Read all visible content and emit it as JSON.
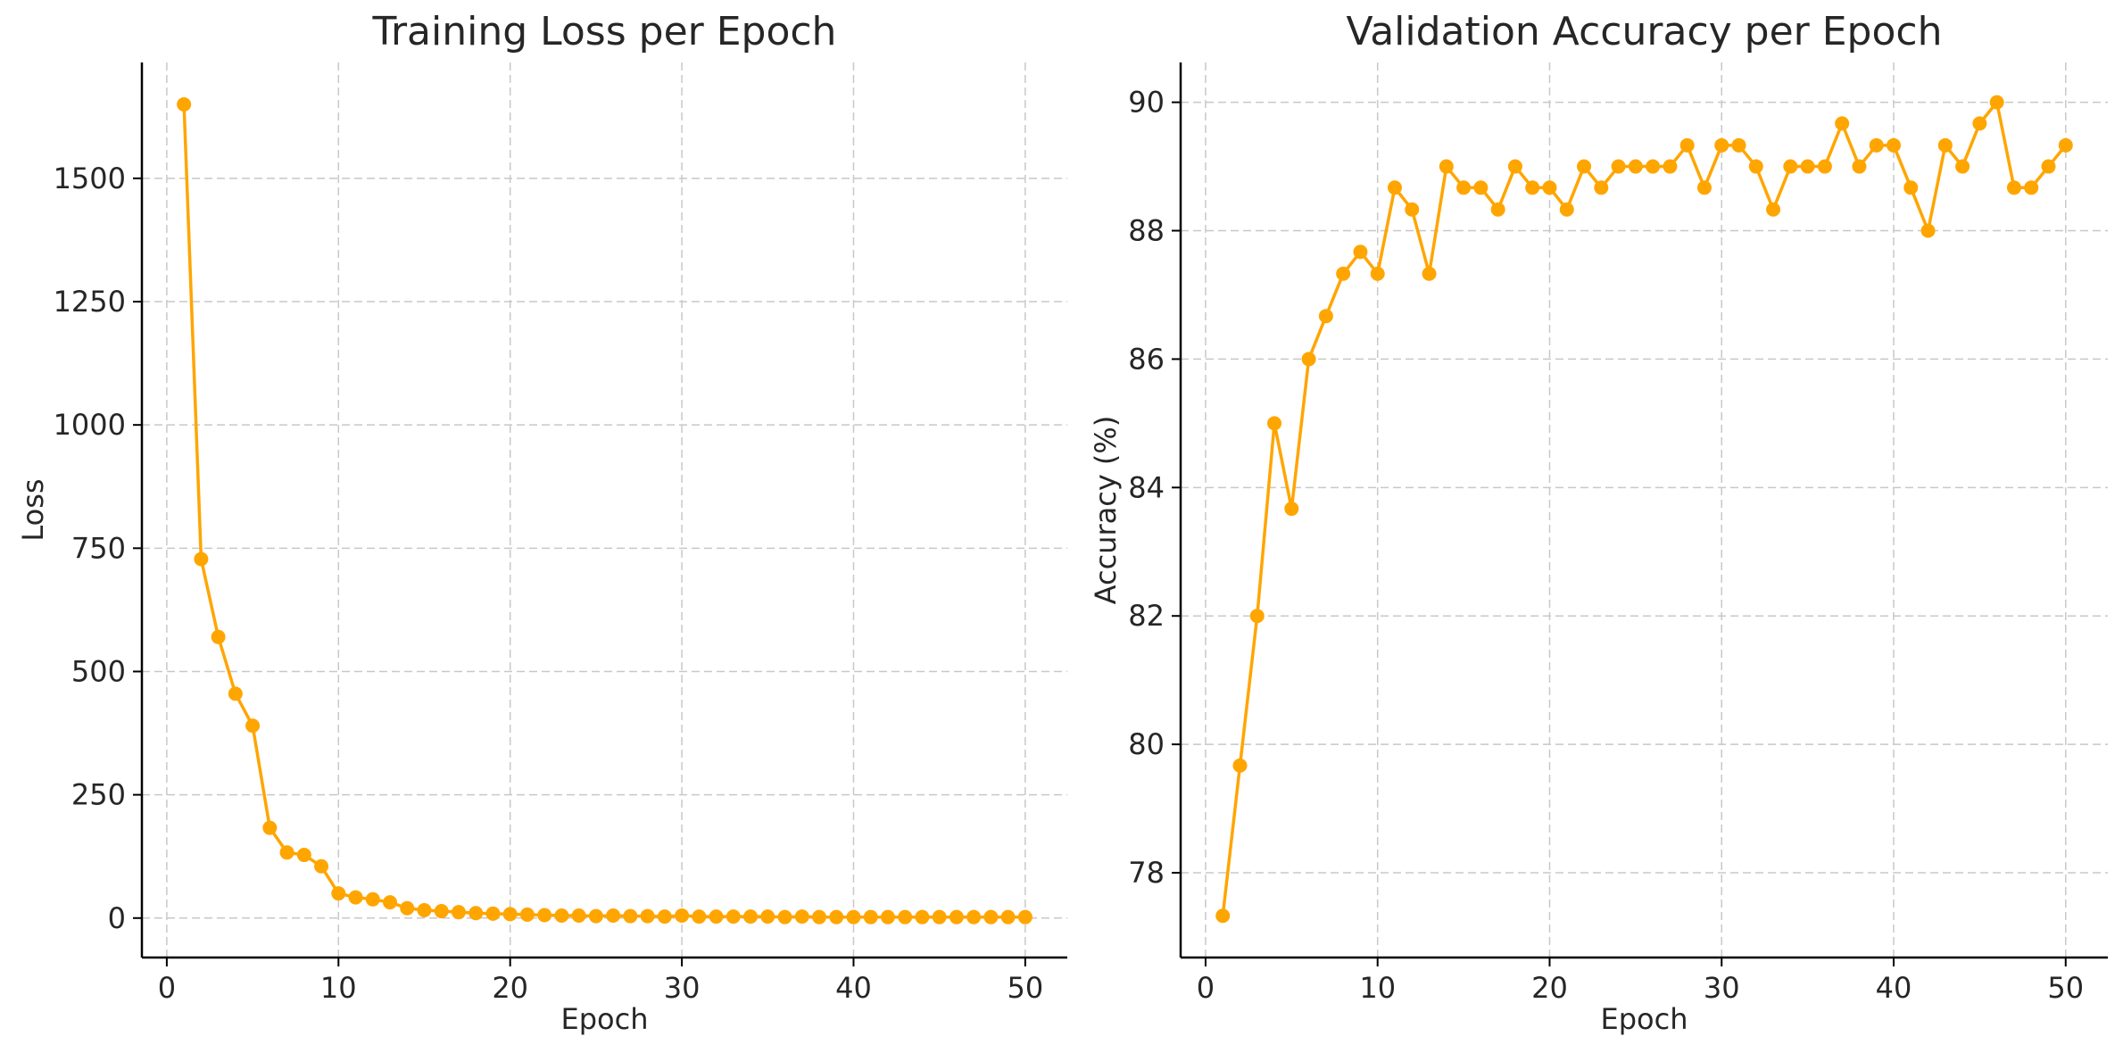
{
  "chart_data": [
    {
      "type": "line",
      "title": "Training Loss per Epoch",
      "xlabel": "Epoch",
      "ylabel": "Loss",
      "xlim": [
        -1.45,
        52.45
      ],
      "ylim": [
        -80,
        1735
      ],
      "xticks": [
        0,
        10,
        20,
        30,
        40,
        50
      ],
      "yticks": [
        0,
        250,
        500,
        750,
        1000,
        1250,
        1500
      ],
      "grid": true,
      "color": "#FFA500",
      "x": [
        1,
        2,
        3,
        4,
        5,
        6,
        7,
        8,
        9,
        10,
        11,
        12,
        13,
        14,
        15,
        16,
        17,
        18,
        19,
        20,
        21,
        22,
        23,
        24,
        25,
        26,
        27,
        28,
        29,
        30,
        31,
        32,
        33,
        34,
        35,
        36,
        37,
        38,
        39,
        40,
        41,
        42,
        43,
        44,
        45,
        46,
        47,
        48,
        49,
        50
      ],
      "series": [
        {
          "values": [
            1650,
            728,
            570,
            455,
            390,
            183,
            133,
            128,
            105,
            50,
            42,
            38,
            32,
            20,
            16,
            14,
            12,
            10,
            9,
            8,
            7,
            6,
            5,
            5,
            4,
            5,
            4,
            4,
            3,
            5,
            3,
            3,
            3,
            3,
            3,
            2,
            3,
            2,
            2,
            2,
            2,
            2,
            2,
            2,
            2,
            2,
            2,
            2,
            2,
            2
          ]
        }
      ]
    },
    {
      "type": "line",
      "title": "Validation Accuracy per Epoch",
      "xlabel": "Epoch",
      "ylabel": "Accuracy (%)",
      "xlim": [
        -1.45,
        52.45
      ],
      "ylim": [
        76.68,
        90.62
      ],
      "xticks": [
        0,
        10,
        20,
        30,
        40,
        50
      ],
      "yticks": [
        78,
        80,
        82,
        84,
        86,
        88,
        90
      ],
      "grid": true,
      "color": "#FFA500",
      "x": [
        1,
        2,
        3,
        4,
        5,
        6,
        7,
        8,
        9,
        10,
        11,
        12,
        13,
        14,
        15,
        16,
        17,
        18,
        19,
        20,
        21,
        22,
        23,
        24,
        25,
        26,
        27,
        28,
        29,
        30,
        31,
        32,
        33,
        34,
        35,
        36,
        37,
        38,
        39,
        40,
        41,
        42,
        43,
        44,
        45,
        46,
        47,
        48,
        49,
        50
      ],
      "series": [
        {
          "values": [
            77.33,
            79.67,
            82.0,
            85.0,
            83.67,
            86.0,
            86.67,
            87.33,
            87.67,
            87.33,
            88.67,
            88.33,
            87.33,
            89.0,
            88.67,
            88.67,
            88.33,
            89.0,
            88.67,
            88.67,
            88.33,
            89.0,
            88.67,
            89.0,
            89.0,
            89.0,
            89.0,
            89.33,
            88.67,
            89.33,
            89.33,
            89.0,
            88.33,
            89.0,
            89.0,
            89.0,
            89.67,
            89.0,
            89.33,
            89.33,
            88.67,
            88.0,
            89.33,
            89.0,
            89.67,
            90.0,
            88.67,
            88.67,
            89.0,
            89.33
          ]
        }
      ]
    }
  ]
}
